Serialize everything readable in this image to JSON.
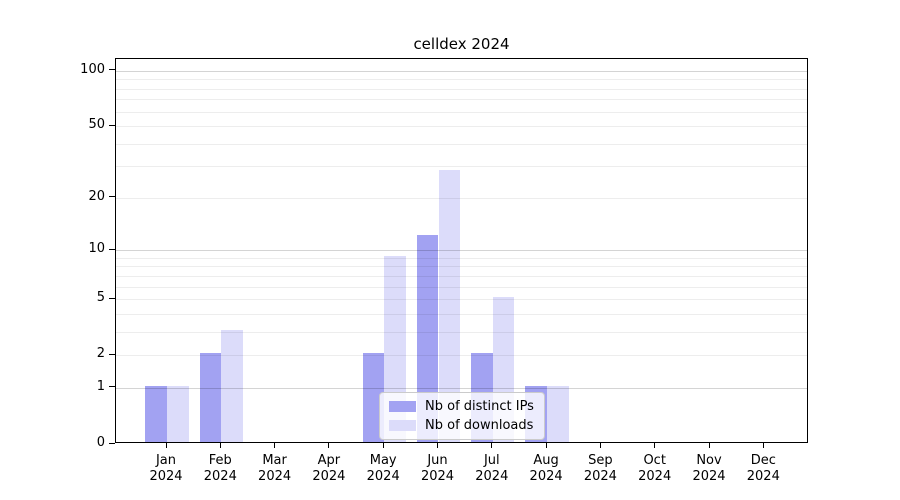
{
  "chart_data": {
    "type": "bar",
    "title": "celldex 2024",
    "year_label": "2024",
    "categories": [
      "Jan",
      "Feb",
      "Mar",
      "Apr",
      "May",
      "Jun",
      "Jul",
      "Aug",
      "Sep",
      "Oct",
      "Nov",
      "Dec"
    ],
    "series": [
      {
        "name": "Nb of distinct IPs",
        "color": "#a2a2f2",
        "values": [
          1,
          2,
          0,
          0,
          2,
          12,
          2,
          1,
          0,
          0,
          0,
          0
        ]
      },
      {
        "name": "Nb of downloads",
        "color": "#dcdcfa",
        "values": [
          1,
          3,
          0,
          0,
          9,
          28,
          5,
          1,
          0,
          0,
          0,
          0
        ]
      }
    ],
    "yscale": "log1p",
    "yticks": [
      0,
      1,
      2,
      5,
      10,
      20,
      50,
      100
    ],
    "grid_minor": [
      2,
      3,
      4,
      5,
      6,
      7,
      8,
      9,
      20,
      30,
      40,
      50,
      60,
      70,
      80,
      90
    ],
    "grid_major": [
      1,
      10,
      100
    ],
    "ylim": [
      0,
      116
    ],
    "legend_position": "lower center",
    "grid_on": true
  }
}
